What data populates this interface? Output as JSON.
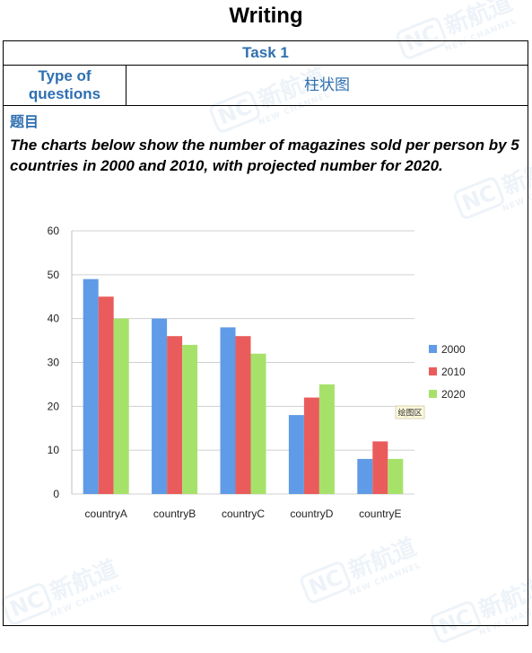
{
  "header": {
    "title": "Writing"
  },
  "table": {
    "task_label": "Task 1",
    "type_label": "Type of\nquestions",
    "type_value": "柱状图"
  },
  "section_heading": "题目",
  "prompt_text": "The charts below show the number of magazines sold per person by 5 countries in 2000 and 2010, with projected number for 2020.",
  "watermark": {
    "cn": "新航道",
    "en": "NEW CHANNEL",
    "badge": "NC"
  },
  "plot_tooltip": "绘图区",
  "colors": {
    "accent": "#2f6fb0",
    "grid": "#d0d0d0"
  },
  "chart_data": {
    "type": "bar",
    "categories": [
      "countryA",
      "countryB",
      "countryC",
      "countryD",
      "countryE"
    ],
    "series": [
      {
        "name": "2000",
        "values": [
          49,
          40,
          38,
          18,
          8
        ],
        "color": "#5f9be6"
      },
      {
        "name": "2010",
        "values": [
          45,
          36,
          36,
          22,
          12
        ],
        "color": "#ea5c5c"
      },
      {
        "name": "2020",
        "values": [
          40,
          34,
          32,
          25,
          8
        ],
        "color": "#a6e26a"
      }
    ],
    "title": "",
    "xlabel": "",
    "ylabel": "",
    "ylim": [
      0,
      60
    ],
    "yticks": [
      0,
      10,
      20,
      30,
      40,
      50,
      60
    ],
    "grid": true,
    "legend_position": "right"
  }
}
